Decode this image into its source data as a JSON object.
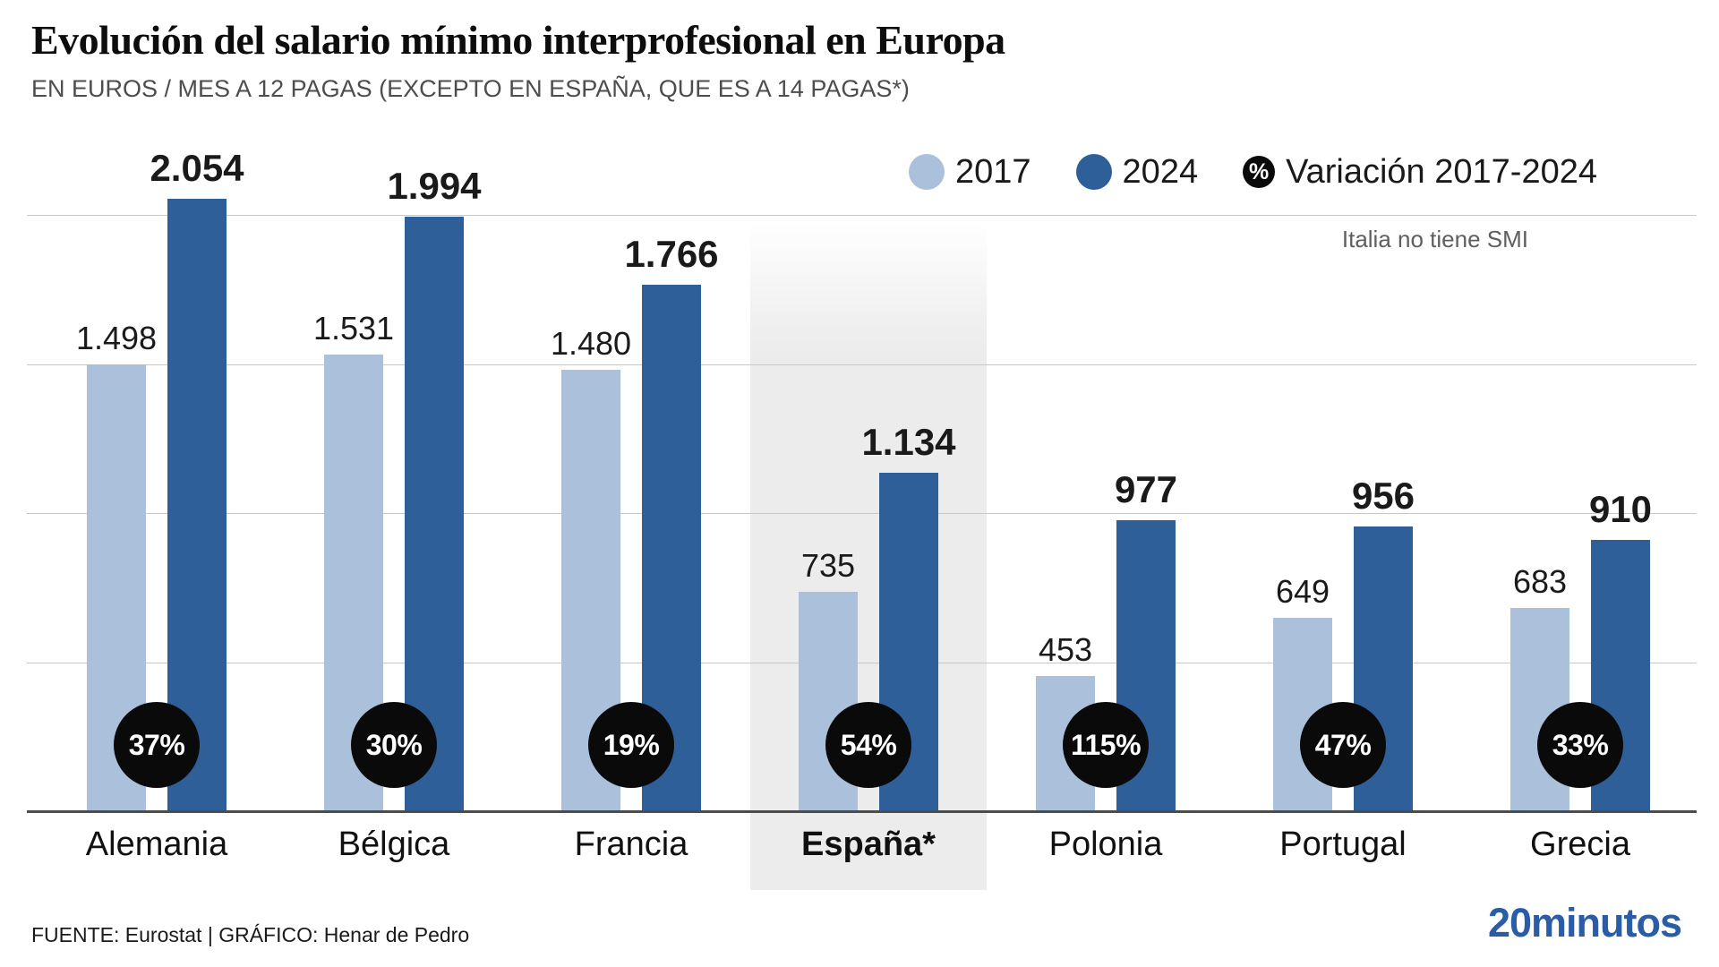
{
  "header": {
    "title": "Evolución del salario mínimo interprofesional en Europa",
    "subtitle": "EN EUROS / MES A 12 PAGAS (EXCEPTO EN ESPAÑA, QUE ES A 14 PAGAS*)"
  },
  "legend": {
    "items": [
      {
        "label": "2017",
        "color": "#abc0da"
      },
      {
        "label": "2024",
        "color": "#2e5f99"
      }
    ],
    "variation": {
      "icon": "%",
      "label": "Variación 2017-2024"
    }
  },
  "note": "Italia no tiene SMI",
  "chart_data": {
    "type": "bar",
    "title": "Evolución del salario mínimo interprofesional en Europa",
    "units": "EN EUROS / MES A 12 PAGAS (EXCEPTO EN ESPAÑA, QUE ES A 14 PAGAS*)",
    "categories": [
      "Alemania",
      "Bélgica",
      "Francia",
      "España*",
      "Polonia",
      "Portugal",
      "Grecia"
    ],
    "series": [
      {
        "name": "2017",
        "color": "#abc0da",
        "values": [
          1498,
          1531,
          1480,
          735,
          453,
          649,
          683
        ],
        "labels": [
          "1.498",
          "1.531",
          "1.480",
          "735",
          "453",
          "649",
          "683"
        ]
      },
      {
        "name": "2024",
        "color": "#2e5f99",
        "values": [
          2054,
          1994,
          1766,
          1134,
          977,
          956,
          910
        ],
        "labels": [
          "2.054",
          "1.994",
          "1.766",
          "1.134",
          "977",
          "956",
          "910"
        ]
      }
    ],
    "variation_2017_2024": [
      "37%",
      "30%",
      "19%",
      "54%",
      "115%",
      "47%",
      "33%"
    ],
    "highlight_category": "España*",
    "ylim": [
      0,
      2000
    ],
    "gridline_step": 500,
    "grid": true,
    "legend_position": "top-right"
  },
  "footer": {
    "source": "FUENTE: Eurostat  |  GRÁFICO: Henar de Pedro",
    "logo": "20minutos"
  }
}
